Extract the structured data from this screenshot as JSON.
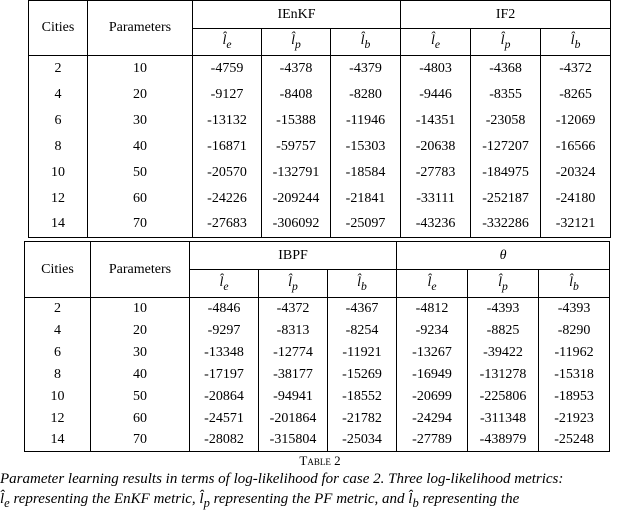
{
  "tables": [
    {
      "headers": {
        "cities": "Cities",
        "parameters": "Parameters",
        "groups": [
          "IEnKF",
          "IF2"
        ],
        "metrics": [
          {
            "t": "l̂",
            "sub": "e"
          },
          {
            "t": "l̂",
            "sub": "p"
          },
          {
            "t": "l̂",
            "sub": "b"
          },
          {
            "t": "l̂",
            "sub": "e"
          },
          {
            "t": "l̂",
            "sub": "p"
          },
          {
            "t": "l̂",
            "sub": "b"
          }
        ]
      },
      "rows": [
        [
          2,
          10,
          -4759,
          -4378,
          -4379,
          -4803,
          -4368,
          -4372
        ],
        [
          4,
          20,
          -9127,
          -8408,
          -8280,
          -9446,
          -8355,
          -8265
        ],
        [
          6,
          30,
          -13132,
          -15388,
          -11946,
          -14351,
          -23058,
          -12069
        ],
        [
          8,
          40,
          -16871,
          -59757,
          -15303,
          -20638,
          -127207,
          -16566
        ],
        [
          10,
          50,
          -20570,
          -132791,
          -18584,
          -27783,
          -184975,
          -20324
        ],
        [
          12,
          60,
          -24226,
          -209244,
          -21841,
          -33111,
          -252187,
          -24180
        ],
        [
          14,
          70,
          -27683,
          -306092,
          -25097,
          -43236,
          -332286,
          -32121
        ]
      ]
    },
    {
      "headers": {
        "cities": "Cities",
        "parameters": "Parameters",
        "groups": [
          "IBPF",
          "θ"
        ],
        "metrics": [
          {
            "t": "l̂",
            "sub": "e"
          },
          {
            "t": "l̂",
            "sub": "p"
          },
          {
            "t": "l̂",
            "sub": "b"
          },
          {
            "t": "l̂",
            "sub": "e"
          },
          {
            "t": "l̂",
            "sub": "p"
          },
          {
            "t": "l̂",
            "sub": "b"
          }
        ]
      },
      "rows": [
        [
          2,
          10,
          -4846,
          -4372,
          -4367,
          -4812,
          -4393,
          -4393
        ],
        [
          4,
          20,
          -9297,
          -8313,
          -8254,
          -9234,
          -8825,
          -8290
        ],
        [
          6,
          30,
          -13348,
          -12774,
          -11921,
          -13267,
          -39422,
          -11962
        ],
        [
          8,
          40,
          -17197,
          -38177,
          -15269,
          -16949,
          -131278,
          -15318
        ],
        [
          10,
          50,
          -20864,
          -94941,
          -18552,
          -20699,
          -225806,
          -18953
        ],
        [
          12,
          60,
          -24571,
          -201864,
          -21782,
          -24294,
          -311348,
          -21923
        ],
        [
          14,
          70,
          -28082,
          -315804,
          -25034,
          -27789,
          -438979,
          -25248
        ]
      ]
    }
  ],
  "caption": {
    "label": "Table 2",
    "line1": "Parameter learning results in terms of log-likelihood for case 2. Three log-likelihood metrics:",
    "line2": [
      {
        "t": "l̂",
        "sub": "e"
      },
      {
        "t": " representing the EnKF metric, "
      },
      {
        "t": "l̂",
        "sub": "p"
      },
      {
        "t": " representing the PF metric, and "
      },
      {
        "t": "l̂",
        "sub": "b"
      },
      {
        "t": " representing the"
      }
    ]
  }
}
